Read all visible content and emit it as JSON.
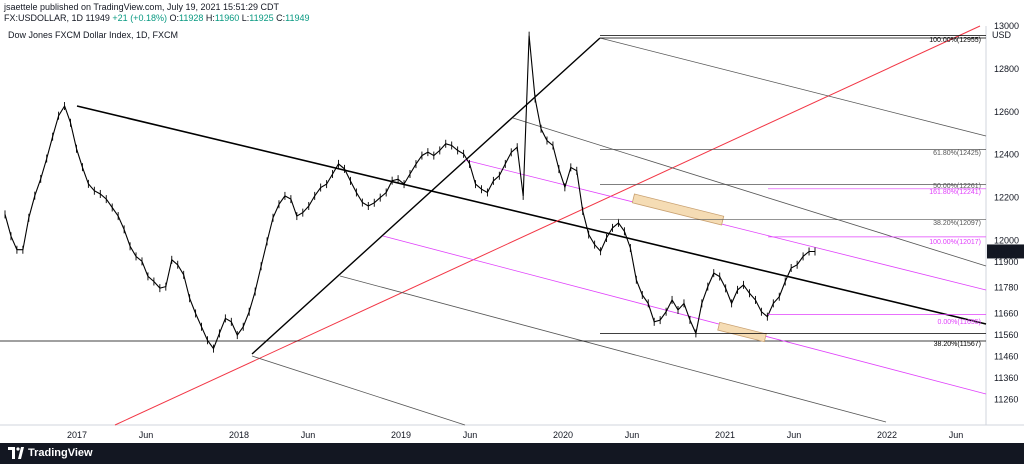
{
  "header": {
    "publisher": "jsaettele published on TradingView.com, July 19, 2021 15:51:29 CDT",
    "symbol": "FX:USDOLLAR, 1D",
    "last": "11949",
    "change": "+21 (+0.18%)",
    "ohlc": "O:11928 H:11960 L:11925 C:11949",
    "o_label": "O:",
    "o_value": "11928",
    "h_label": "H:",
    "h_value": "11960",
    "l_label": "L:",
    "l_value": "11925",
    "c_label": "C:",
    "c_value": "11949"
  },
  "subtitle": "Dow Jones FXCM Dollar Index, 1D, FXCM",
  "footer": {
    "brand": "TradingView"
  },
  "colors": {
    "candle": "#000000",
    "trend_red": "#f23645",
    "channel_magenta": "#e040fb",
    "zone_fill": "#f5dcb4",
    "price_badge": "#131722"
  },
  "chart_data": {
    "type": "line",
    "symbol": "FX:USDOLLAR",
    "currency": "USD",
    "ylim": [
      11140,
      13000
    ],
    "y_ticks": [
      13000,
      12800,
      12600,
      12400,
      12200,
      12000,
      11900,
      11780,
      11660,
      11560,
      11460,
      11360,
      11260
    ],
    "y_tick_labels": [
      "13000",
      "12800",
      "12600",
      "12400",
      "12200",
      "12000",
      "11900",
      "11780",
      "11660",
      "11560",
      "11460",
      "11360",
      "11260"
    ],
    "x_tick_labels": [
      "2017",
      "Jun",
      "2018",
      "Jun",
      "2019",
      "Jun",
      "2020",
      "Jun",
      "2021",
      "Jun",
      "2022",
      "Jun"
    ],
    "current_price": "11949",
    "fib_levels": [
      {
        "label": "100.00%(12955)",
        "value": 12955
      },
      {
        "label": "61.80%(12425)",
        "value": 12425
      },
      {
        "label": "50.00%(12261)",
        "value": 12261
      },
      {
        "label": "161.80%(12241)",
        "value": 12241
      },
      {
        "label": "38.20%(12097)",
        "value": 12097
      },
      {
        "label": "100.00%(12017)",
        "value": 12017
      },
      {
        "label": "0.00%(11655)",
        "value": 11655
      },
      {
        "label": "38.20%(11567)",
        "value": 11567
      }
    ],
    "series": [
      {
        "x": [
          0,
          6,
          12,
          18,
          24,
          30,
          36,
          42,
          48,
          54,
          60,
          66,
          72,
          78,
          84,
          90,
          96,
          102,
          108,
          114,
          120,
          126,
          132,
          138,
          144,
          150,
          156,
          162,
          168,
          174,
          180,
          186,
          192,
          198,
          204,
          210,
          216,
          222,
          228,
          234,
          240,
          246,
          252,
          258,
          264,
          270,
          276,
          282,
          288,
          294,
          300,
          306,
          312,
          318,
          324,
          330,
          336,
          342,
          348,
          354,
          360,
          366,
          372,
          378,
          384,
          390,
          396,
          402,
          408,
          414,
          420,
          426,
          432,
          438,
          444,
          450,
          456,
          462,
          468,
          474,
          480,
          486,
          492,
          498,
          504,
          510,
          516,
          522,
          528,
          534,
          540,
          546,
          552,
          558,
          564,
          570,
          576,
          582,
          588,
          594,
          600,
          606,
          612,
          618,
          624,
          630,
          636,
          642,
          648,
          654,
          660,
          666,
          672,
          678,
          684,
          690,
          696,
          702,
          708,
          714,
          720,
          726,
          732,
          738,
          744,
          750,
          756,
          762,
          768,
          774,
          780,
          786,
          792,
          798,
          804,
          810,
          816
        ],
        "values": [
          12122,
          12020,
          11957,
          11957,
          12106,
          12209,
          12287,
          12382,
          12484,
          12582,
          12627,
          12549,
          12428,
          12342,
          12264,
          12232,
          12217,
          12193,
          12154,
          12114,
          12052,
          11973,
          11926,
          11903,
          11833,
          11809,
          11778,
          11785,
          11910,
          11887,
          11840,
          11731,
          11660,
          11598,
          11535,
          11496,
          11567,
          11637,
          11621,
          11559,
          11598,
          11668,
          11762,
          11880,
          11996,
          12106,
          12169,
          12208,
          12193,
          12114,
          12130,
          12161,
          12208,
          12247,
          12263,
          12310,
          12357,
          12334,
          12278,
          12224,
          12177,
          12161,
          12176,
          12200,
          12224,
          12279,
          12286,
          12263,
          12310,
          12356,
          12396,
          12412,
          12396,
          12420,
          12451,
          12443,
          12420,
          12404,
          12357,
          12263,
          12239,
          12224,
          12278,
          12302,
          12357,
          12411,
          12435,
          12208,
          12955,
          12662,
          12521,
          12466,
          12443,
          12333,
          12248,
          12341,
          12325,
          12138,
          12028,
          11981,
          11950,
          12012,
          12059,
          12082,
          12043,
          11965,
          11817,
          11746,
          11707,
          11621,
          11629,
          11668,
          11723,
          11676,
          11707,
          11630,
          11567,
          11707,
          11785,
          11848,
          11832,
          11777,
          11707,
          11770,
          11793,
          11754,
          11723,
          11668,
          11645,
          11707,
          11738,
          11809,
          11872,
          11887,
          11926,
          11949,
          11949
        ],
        "x_unit": "daily bars index"
      }
    ]
  }
}
